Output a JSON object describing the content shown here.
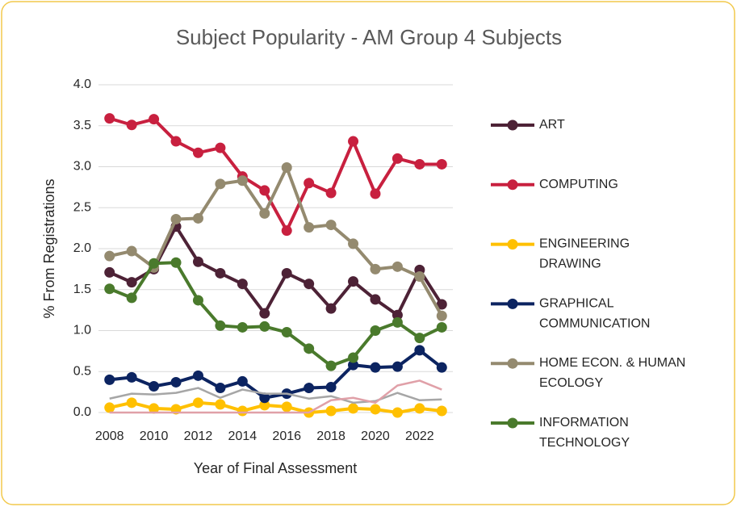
{
  "chart_data": {
    "type": "line",
    "title": "Subject Popularity - AM Group 4 Subjects",
    "x_label": "Year of Final Assessment",
    "y_label": "% From Registrations",
    "x": [
      2008,
      2009,
      2010,
      2011,
      2012,
      2013,
      2014,
      2015,
      2016,
      2017,
      2018,
      2019,
      2020,
      2021,
      2022,
      2023
    ],
    "xlim": [
      2007.5,
      2023.5
    ],
    "xticks": [
      2008,
      2010,
      2012,
      2014,
      2016,
      2018,
      2020,
      2022
    ],
    "ylim": [
      0,
      4
    ],
    "yticks": [
      {
        "value": 0,
        "label": "0.0"
      },
      {
        "value": 0.5,
        "label": "0.5"
      },
      {
        "value": 1,
        "label": "1.0"
      },
      {
        "value": 1.5,
        "label": "1.5"
      },
      {
        "value": 2,
        "label": "2.0"
      },
      {
        "value": 2.5,
        "label": "2.5"
      },
      {
        "value": 3,
        "label": "3.0"
      },
      {
        "value": 3.5,
        "label": "3.5"
      },
      {
        "value": 4,
        "label": "4.0"
      }
    ],
    "grid": true,
    "legend": "right",
    "series": [
      {
        "name": "ART",
        "color": "#4d2236",
        "values": [
          1.71,
          1.59,
          1.75,
          2.27,
          1.84,
          1.7,
          1.57,
          1.21,
          1.7,
          1.57,
          1.27,
          1.6,
          1.38,
          1.19,
          1.74,
          1.32
        ]
      },
      {
        "name": "COMPUTING",
        "color": "#c8203f",
        "values": [
          3.59,
          3.51,
          3.58,
          3.31,
          3.17,
          3.23,
          2.88,
          2.71,
          2.22,
          2.8,
          2.68,
          3.31,
          2.67,
          3.1,
          3.03,
          3.03
        ]
      },
      {
        "name": "ENGINEERING DRAWING",
        "color": "#ffc000",
        "values": [
          0.06,
          0.12,
          0.05,
          0.04,
          0.12,
          0.1,
          0.02,
          0.09,
          0.07,
          0.0,
          0.02,
          0.05,
          0.04,
          0.0,
          0.05,
          0.02
        ]
      },
      {
        "name": "GRAPHICAL COMMUNICATION",
        "color": "#0c2461",
        "values": [
          0.4,
          0.43,
          0.32,
          0.37,
          0.45,
          0.3,
          0.38,
          0.18,
          0.23,
          0.3,
          0.31,
          0.58,
          0.55,
          0.56,
          0.76,
          0.55
        ]
      },
      {
        "name": "HOME ECON. & HUMAN ECOLOGY",
        "color": "#948a6f",
        "values": [
          1.91,
          1.97,
          1.77,
          2.36,
          2.37,
          2.79,
          2.83,
          2.43,
          2.99,
          2.26,
          2.29,
          2.06,
          1.75,
          1.78,
          1.66,
          1.18
        ]
      },
      {
        "name": "INFORMATION TECHNOLOGY",
        "color": "#4a7a2c",
        "values": [
          1.51,
          1.4,
          1.82,
          1.83,
          1.37,
          1.06,
          1.04,
          1.05,
          0.98,
          0.78,
          0.57,
          0.67,
          1.0,
          1.1,
          0.91,
          1.04
        ]
      },
      {
        "color": "#a6a6a6",
        "values": [
          0.17,
          0.23,
          0.22,
          0.24,
          0.3,
          0.18,
          0.28,
          0.23,
          0.23,
          0.17,
          0.2,
          0.12,
          0.14,
          0.24,
          0.15,
          0.16
        ]
      },
      {
        "color": "#e0a0a8",
        "values": [
          0,
          0,
          0,
          0,
          0,
          0,
          0,
          0,
          0,
          0,
          0.15,
          0.18,
          0.12,
          0.33,
          0.39,
          0.28
        ]
      }
    ]
  }
}
